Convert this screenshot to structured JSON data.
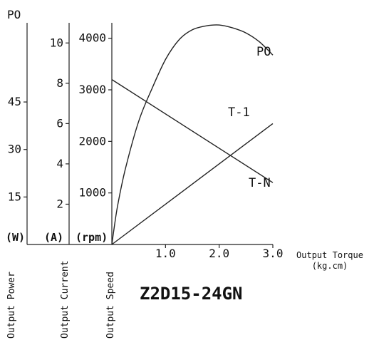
{
  "chart_data": {
    "type": "line",
    "title": "Z2D15-24GN",
    "x_axis": {
      "label": "Output Torque",
      "unit_label": "(kg.cm)",
      "range": [
        0,
        3.0
      ],
      "ticks": [
        1.0,
        2.0,
        3.0
      ],
      "tick_labels": [
        "1.0",
        "2.0",
        "3.0"
      ]
    },
    "y_axes": {
      "power": {
        "name": "Output Power",
        "unit_label": "(W)",
        "header": "PO",
        "range": [
          0,
          70
        ],
        "ticks": [
          15,
          30,
          45
        ],
        "tick_labels": [
          "15",
          "30",
          "45"
        ]
      },
      "current": {
        "name": "Output Current",
        "unit_label": "(A)",
        "range": [
          0,
          11
        ],
        "ticks": [
          2,
          4,
          6,
          8,
          10
        ],
        "tick_labels": [
          "2",
          "4",
          "6",
          "8",
          "10"
        ]
      },
      "speed": {
        "name": "Output Speed",
        "unit_label": "(rpm)",
        "range": [
          0,
          4300
        ],
        "ticks": [
          1000,
          2000,
          3000,
          4000
        ],
        "tick_labels": [
          "1000",
          "2000",
          "3000",
          "4000"
        ]
      }
    },
    "series": [
      {
        "name": "PO",
        "axis": "power",
        "x": [
          0,
          0.1,
          0.25,
          0.5,
          0.75,
          1.0,
          1.25,
          1.5,
          1.75,
          2.0,
          2.25,
          2.5,
          2.75,
          3.0
        ],
        "y": [
          0,
          11.5,
          23.7,
          38.9,
          49.3,
          58.4,
          64.6,
          67.8,
          69.0,
          69.3,
          68.4,
          66.8,
          64.0,
          59.8
        ]
      },
      {
        "name": "T-1",
        "axis": "current",
        "x": [
          0,
          3.0
        ],
        "y": [
          0,
          6.0
        ]
      },
      {
        "name": "T-N",
        "axis": "speed",
        "x": [
          0,
          3.0
        ],
        "y": [
          3200,
          1200
        ]
      }
    ]
  }
}
